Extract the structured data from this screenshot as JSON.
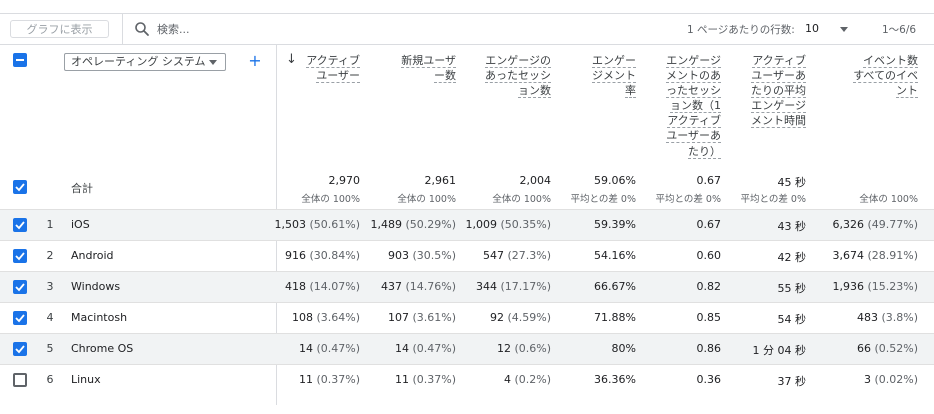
{
  "toolbar": {
    "graph_button": "グラフに表示",
    "search_placeholder": "検索...",
    "rows_per_page_label": "1 ページあたりの行数:",
    "rows_per_page_value": "10",
    "pagination": "1〜6/6"
  },
  "header": {
    "dimension_select": "オペレーティング システム",
    "add_button": "+",
    "sort_icon": "arrow-down-icon",
    "columns": [
      {
        "lines": [
          "アクティブ",
          "ユーザー"
        ]
      },
      {
        "lines": [
          "新規ユーザ",
          "ー数"
        ]
      },
      {
        "lines": [
          "エンゲージの",
          "あったセッシ",
          "ョン数"
        ]
      },
      {
        "lines": [
          "エンゲー",
          "ジメント",
          "率"
        ]
      },
      {
        "lines": [
          "エンゲージ",
          "メントのあ",
          "ったセッシ",
          "ョン数（1",
          "アクティブ",
          "ユーザーあ",
          "たり）"
        ]
      },
      {
        "lines": [
          "アクティブ",
          "ユーザーあ",
          "たりの平均",
          "エンゲージ",
          "メント時間"
        ]
      },
      {
        "lines": [
          "イベント数",
          "すべてのイベント"
        ]
      }
    ]
  },
  "totals": {
    "label": "合計",
    "values": [
      "2,970",
      "2,961",
      "2,004",
      "59.06%",
      "0.67",
      "45 秒",
      ""
    ],
    "subs": [
      "全体の 100%",
      "全体の 100%",
      "全体の 100%",
      "平均との差 0%",
      "平均との差 0%",
      "平均との差 0%",
      "全体の 100%"
    ]
  },
  "rows": [
    {
      "num": "1",
      "name": "iOS",
      "checked": true,
      "cells": [
        [
          "1,503",
          "(50.61%)"
        ],
        [
          "1,489",
          "(50.29%)"
        ],
        [
          "1,009",
          "(50.35%)"
        ],
        [
          "59.39%",
          ""
        ],
        [
          "0.67",
          ""
        ],
        [
          "43 秒",
          ""
        ],
        [
          "6,326",
          "(49.77%)"
        ]
      ]
    },
    {
      "num": "2",
      "name": "Android",
      "checked": true,
      "cells": [
        [
          "916",
          "(30.84%)"
        ],
        [
          "903",
          "(30.5%)"
        ],
        [
          "547",
          "(27.3%)"
        ],
        [
          "54.16%",
          ""
        ],
        [
          "0.60",
          ""
        ],
        [
          "42 秒",
          ""
        ],
        [
          "3,674",
          "(28.91%)"
        ]
      ]
    },
    {
      "num": "3",
      "name": "Windows",
      "checked": true,
      "cells": [
        [
          "418",
          "(14.07%)"
        ],
        [
          "437",
          "(14.76%)"
        ],
        [
          "344",
          "(17.17%)"
        ],
        [
          "66.67%",
          ""
        ],
        [
          "0.82",
          ""
        ],
        [
          "55 秒",
          ""
        ],
        [
          "1,936",
          "(15.23%)"
        ]
      ]
    },
    {
      "num": "4",
      "name": "Macintosh",
      "checked": true,
      "cells": [
        [
          "108",
          "(3.64%)"
        ],
        [
          "107",
          "(3.61%)"
        ],
        [
          "92",
          "(4.59%)"
        ],
        [
          "71.88%",
          ""
        ],
        [
          "0.85",
          ""
        ],
        [
          "54 秒",
          ""
        ],
        [
          "483",
          "(3.8%)"
        ]
      ]
    },
    {
      "num": "5",
      "name": "Chrome OS",
      "checked": true,
      "cells": [
        [
          "14",
          "(0.47%)"
        ],
        [
          "14",
          "(0.47%)"
        ],
        [
          "12",
          "(0.6%)"
        ],
        [
          "80%",
          ""
        ],
        [
          "0.86",
          ""
        ],
        [
          "1 分 04 秒",
          ""
        ],
        [
          "66",
          "(0.52%)"
        ]
      ]
    },
    {
      "num": "6",
      "name": "Linux",
      "checked": false,
      "cells": [
        [
          "11",
          "(0.37%)"
        ],
        [
          "11",
          "(0.37%)"
        ],
        [
          "4",
          "(0.2%)"
        ],
        [
          "36.36%",
          ""
        ],
        [
          "0.36",
          ""
        ],
        [
          "37 秒",
          ""
        ],
        [
          "3",
          "(0.02%)"
        ]
      ]
    }
  ],
  "colors": {
    "accent": "#1a73e8",
    "row_shade": "#f1f3f4",
    "border": "#dadce0"
  }
}
